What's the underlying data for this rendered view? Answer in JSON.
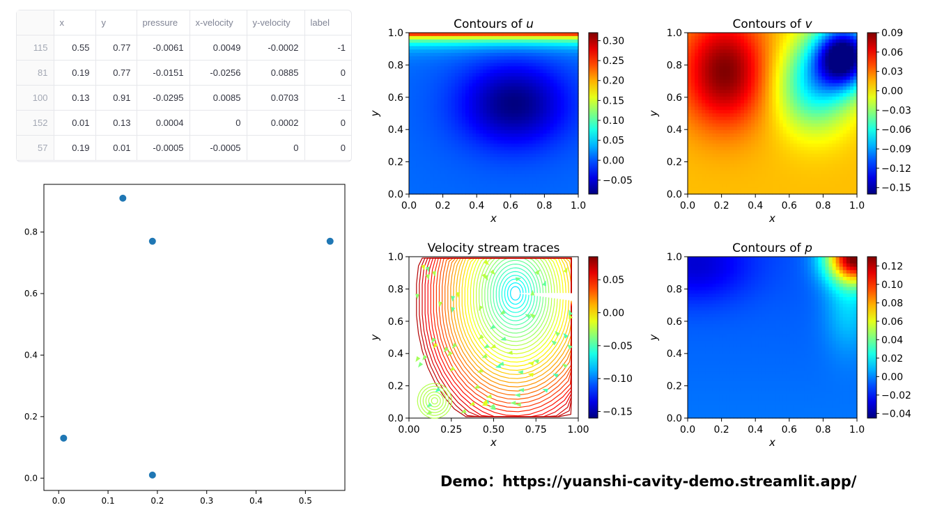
{
  "table": {
    "columns": [
      "",
      "x",
      "y",
      "pressure",
      "x-velocity",
      "y-velocity",
      "label"
    ],
    "rows": [
      [
        "115",
        "0.55",
        "0.77",
        "-0.0061",
        "0.0049",
        "-0.0002",
        "-1"
      ],
      [
        "81",
        "0.19",
        "0.77",
        "-0.0151",
        "-0.0256",
        "0.0885",
        "0"
      ],
      [
        "100",
        "0.13",
        "0.91",
        "-0.0295",
        "0.0085",
        "0.0703",
        "-1"
      ],
      [
        "152",
        "0.01",
        "0.13",
        "0.0004",
        "0",
        "0.0002",
        "0"
      ],
      [
        "57",
        "0.19",
        "0.01",
        "-0.0005",
        "-0.0005",
        "0",
        "0"
      ]
    ]
  },
  "chart_data": [
    {
      "type": "scatter",
      "x": [
        0.55,
        0.19,
        0.13,
        0.01,
        0.19
      ],
      "y": [
        0.77,
        0.77,
        0.91,
        0.13,
        0.01
      ],
      "xlim": [
        -0.03,
        0.58
      ],
      "ylim": [
        -0.04,
        0.955
      ],
      "xticks": [
        "0.0",
        "0.1",
        "0.2",
        "0.3",
        "0.4",
        "0.5"
      ],
      "yticks": [
        "0.0",
        "0.2",
        "0.4",
        "0.6",
        "0.8"
      ],
      "color": "#1f77b4"
    },
    {
      "type": "heatmap",
      "title": "Contours of ",
      "title_var": "u",
      "xlabel": "x",
      "ylabel": "y",
      "xticks": [
        "0.0",
        "0.2",
        "0.4",
        "0.6",
        "0.8",
        "1.0"
      ],
      "yticks": [
        "0.0",
        "0.2",
        "0.4",
        "0.6",
        "0.8",
        "1.0"
      ],
      "colorbar_ticks": [
        "0.30",
        "0.25",
        "0.20",
        "0.15",
        "0.10",
        "0.05",
        "0.00",
        "−0.05"
      ],
      "colorbar_range": [
        -0.085,
        0.32
      ]
    },
    {
      "type": "heatmap",
      "title": "Contours of ",
      "title_var": "v",
      "xlabel": "x",
      "ylabel": "y",
      "xticks": [
        "0.0",
        "0.2",
        "0.4",
        "0.6",
        "0.8",
        "1.0"
      ],
      "yticks": [
        "0.0",
        "0.2",
        "0.4",
        "0.6",
        "0.8",
        "1.0"
      ],
      "colorbar_ticks": [
        "0.09",
        "0.06",
        "0.03",
        "0.00",
        "−0.03",
        "−0.06",
        "−0.09",
        "−0.12",
        "−0.15"
      ],
      "colorbar_range": [
        -0.16,
        0.09
      ]
    },
    {
      "type": "streamplot",
      "title": "Velocity stream traces",
      "xlabel": "x",
      "ylabel": "y",
      "xticks": [
        "0.00",
        "0.25",
        "0.50",
        "0.75",
        "1.00"
      ],
      "yticks": [
        "0.0",
        "0.2",
        "0.4",
        "0.6",
        "0.8",
        "1.0"
      ],
      "colorbar_ticks": [
        "0.05",
        "0.00",
        "−0.05",
        "−0.10",
        "−0.15"
      ],
      "colorbar_range": [
        -0.16,
        0.085
      ]
    },
    {
      "type": "heatmap",
      "title": "Contours of ",
      "title_var": "p",
      "xlabel": "x",
      "ylabel": "y",
      "xticks": [
        "0.0",
        "0.2",
        "0.4",
        "0.6",
        "0.8",
        "1.0"
      ],
      "yticks": [
        "0.0",
        "0.2",
        "0.4",
        "0.6",
        "0.8",
        "1.0"
      ],
      "colorbar_ticks": [
        "0.12",
        "0.10",
        "0.08",
        "0.06",
        "0.04",
        "0.02",
        "0.00",
        "−0.02",
        "−0.04"
      ],
      "colorbar_range": [
        -0.045,
        0.13
      ]
    }
  ],
  "footer": {
    "prefix": "Demo：",
    "url": "https://yuanshi-cavity-demo.streamlit.app/"
  }
}
